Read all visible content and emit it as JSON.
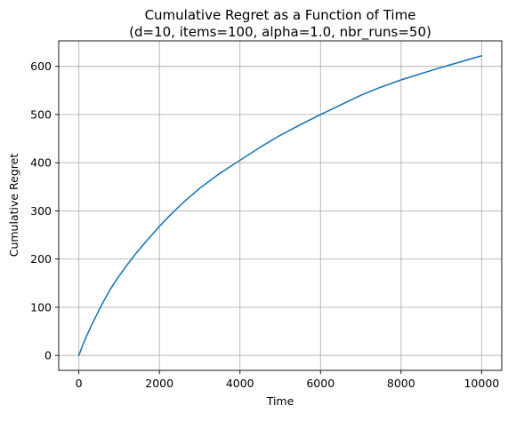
{
  "chart_data": {
    "type": "line",
    "title_line1": "Cumulative Regret as a Function of Time",
    "title_line2": "(d=10, items=100, alpha=1.0, nbr_runs=50)",
    "xlabel": "Time",
    "ylabel": "Cumulative Regret",
    "xlim": [
      -500,
      10500
    ],
    "ylim": [
      -31,
      653
    ],
    "xticks": [
      0,
      2000,
      4000,
      6000,
      8000,
      10000
    ],
    "xtick_labels": [
      "0",
      "2000",
      "4000",
      "6000",
      "8000",
      "10000"
    ],
    "yticks": [
      0,
      100,
      200,
      300,
      400,
      500,
      600
    ],
    "ytick_labels": [
      "0",
      "100",
      "200",
      "300",
      "400",
      "500",
      "600"
    ],
    "grid": true,
    "series": [
      {
        "color": "#1f77b4",
        "x": [
          0,
          100,
          200,
          300,
          400,
          500,
          600,
          700,
          800,
          1000,
          1200,
          1400,
          1600,
          1800,
          2000,
          2300,
          2600,
          3000,
          3500,
          4000,
          4500,
          5000,
          5500,
          6000,
          6500,
          7000,
          7500,
          8000,
          8500,
          9000,
          9500,
          10000
        ],
        "y": [
          0,
          22,
          42,
          60,
          77,
          94,
          110,
          125,
          140,
          165,
          188,
          210,
          230,
          249,
          268,
          294,
          318,
          347,
          378,
          405,
          432,
          457,
          479,
          500,
          520,
          540,
          557,
          572,
          585,
          598,
          610,
          622
        ]
      }
    ]
  }
}
